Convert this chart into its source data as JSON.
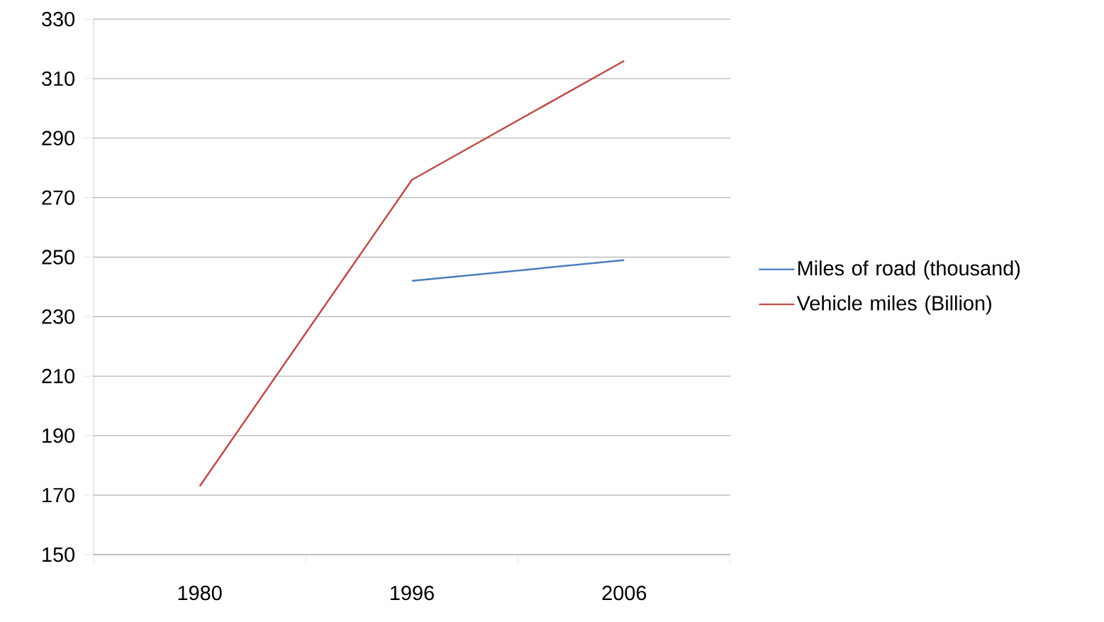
{
  "chart_data": {
    "type": "line",
    "categories": [
      "1980",
      "1996",
      "2006"
    ],
    "series": [
      {
        "name": "Miles of road (thousand)",
        "color": "#4a7ebb",
        "values": [
          null,
          242,
          249
        ]
      },
      {
        "name": "Vehicle miles (Billion)",
        "color": "#be4b48",
        "values": [
          173,
          276,
          316
        ]
      }
    ],
    "ylim": [
      150,
      330
    ],
    "yticks": [
      150,
      170,
      190,
      210,
      230,
      250,
      270,
      290,
      310,
      330
    ],
    "grid": "y",
    "legend": "right",
    "marker": "none",
    "line_style": "solid"
  }
}
